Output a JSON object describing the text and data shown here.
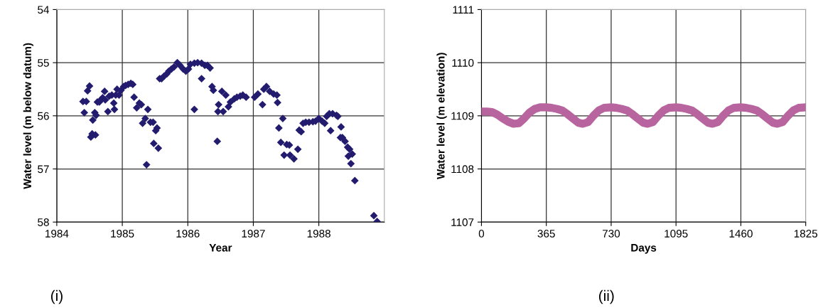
{
  "chart_data": [
    {
      "type": "scatter",
      "xlabel": "Year",
      "ylabel": "Water level (m below datum)",
      "annotations": [
        "(i)"
      ],
      "xlim": [
        1984,
        1989
      ],
      "xticks": [
        1984,
        1985,
        1986,
        1987,
        1988
      ],
      "ylim": [
        58,
        54
      ],
      "yticks": [
        54,
        55,
        56,
        57,
        58
      ],
      "grid": true,
      "marker": "diamond",
      "series": [
        {
          "color": "#231c6e",
          "x": [
            1984.4,
            1984.42,
            1984.45,
            1984.47,
            1984.5,
            1984.52,
            1984.54,
            1984.59,
            1984.55,
            1984.58,
            1984.6,
            1984.62,
            1984.65,
            1984.67,
            1984.7,
            1984.73,
            1984.74,
            1984.78,
            1984.8,
            1984.84,
            1984.87,
            1984.88,
            1984.9,
            1984.92,
            1984.95,
            1984.98,
            1985.02,
            1985.05,
            1985.09,
            1985.13,
            1985.16,
            1985.18,
            1985.22,
            1985.26,
            1985.29,
            1985.31,
            1985.35,
            1985.37,
            1985.39,
            1985.43,
            1985.47,
            1985.48,
            1985.51,
            1985.53,
            1985.55,
            1985.57,
            1985.6,
            1985.64,
            1985.68,
            1985.71,
            1985.75,
            1985.79,
            1985.84,
            1985.88,
            1985.93,
            1985.97,
            1986.01,
            1986.04,
            1986.1,
            1986.1,
            1986.15,
            1986.21,
            1986.21,
            1986.26,
            1986.3,
            1986.34,
            1986.37,
            1986.39,
            1986.45,
            1986.47,
            1986.46,
            1986.52,
            1986.54,
            1986.58,
            1986.62,
            1986.65,
            1986.71,
            1986.75,
            1986.8,
            1986.84,
            1986.89,
            1987.02,
            1987.07,
            1987.14,
            1987.16,
            1987.2,
            1987.25,
            1987.31,
            1987.36,
            1987.37,
            1987.39,
            1987.45,
            1987.42,
            1987.47,
            1987.51,
            1987.55,
            1987.56,
            1987.62,
            1987.68,
            1987.7,
            1987.73,
            1987.76,
            1987.8,
            1987.85,
            1987.91,
            1987.95,
            1988.0,
            1988.05,
            1988.09,
            1988.12,
            1988.16,
            1988.18,
            1988.21,
            1988.27,
            1988.29,
            1988.34,
            1988.33,
            1988.36,
            1988.4,
            1988.44,
            1988.47,
            1988.45,
            1988.51,
            1988.49,
            1988.55,
            1988.84,
            1988.89
          ],
          "values": [
            55.73,
            55.94,
            55.73,
            55.53,
            55.44,
            56.4,
            56.34,
            56.36,
            56.08,
            55.94,
            55.99,
            55.74,
            55.74,
            55.7,
            55.66,
            55.54,
            55.7,
            55.92,
            55.63,
            55.61,
            55.76,
            55.88,
            55.61,
            55.5,
            55.61,
            55.52,
            55.45,
            55.43,
            55.41,
            55.39,
            55.41,
            55.65,
            55.85,
            55.76,
            55.79,
            56.14,
            56.05,
            56.92,
            55.88,
            56.12,
            56.12,
            56.52,
            56.28,
            56.23,
            56.61,
            55.3,
            55.3,
            55.25,
            55.21,
            55.16,
            55.12,
            55.08,
            55.0,
            55.05,
            55.12,
            55.16,
            55.12,
            55.03,
            55.01,
            55.88,
            55.0,
            55.3,
            55.01,
            55.05,
            55.05,
            55.1,
            55.45,
            55.52,
            56.48,
            55.79,
            55.92,
            55.54,
            55.92,
            55.61,
            55.83,
            55.74,
            55.68,
            55.65,
            55.63,
            55.61,
            55.65,
            55.65,
            55.59,
            55.79,
            55.5,
            55.45,
            55.54,
            55.59,
            55.61,
            55.75,
            56.23,
            56.05,
            56.5,
            56.74,
            56.54,
            56.55,
            56.74,
            56.81,
            56.63,
            56.27,
            56.3,
            56.14,
            56.12,
            56.12,
            56.11,
            56.1,
            56.05,
            56.1,
            56.14,
            56.01,
            55.96,
            56.28,
            55.96,
            55.99,
            56.01,
            56.21,
            56.41,
            56.41,
            56.48,
            56.59,
            56.63,
            56.76,
            56.72,
            56.9,
            57.22,
            57.88,
            57.99
          ]
        }
      ]
    },
    {
      "type": "line",
      "xlabel": "Days",
      "ylabel": "Water level (m elevation)",
      "annotations": [
        "(ii)"
      ],
      "xlim": [
        0,
        1825
      ],
      "xticks": [
        0,
        365,
        730,
        1095,
        1460,
        1825
      ],
      "ylim": [
        1107,
        1111
      ],
      "yticks": [
        1107,
        1108,
        1109,
        1110,
        1111
      ],
      "grid": true,
      "line_style": "solid",
      "series": [
        {
          "color": "#b8649e",
          "x": [
            0,
            30,
            60,
            90,
            120,
            150,
            180,
            210,
            240,
            270,
            300,
            330,
            365,
            395,
            425,
            455,
            485,
            515,
            545,
            570,
            600,
            630,
            660,
            690,
            730,
            760,
            790,
            820,
            850,
            880,
            910,
            935,
            965,
            995,
            1025,
            1055,
            1095,
            1125,
            1155,
            1185,
            1215,
            1245,
            1275,
            1300,
            1330,
            1360,
            1390,
            1420,
            1460,
            1490,
            1520,
            1550,
            1580,
            1610,
            1640,
            1665,
            1695,
            1725,
            1755,
            1785,
            1825
          ],
          "values": [
            1109.08,
            1109.08,
            1109.07,
            1109.02,
            1108.95,
            1108.89,
            1108.85,
            1108.86,
            1108.95,
            1109.06,
            1109.13,
            1109.16,
            1109.16,
            1109.15,
            1109.13,
            1109.1,
            1109.03,
            1108.95,
            1108.87,
            1108.85,
            1108.88,
            1109.0,
            1109.1,
            1109.15,
            1109.16,
            1109.15,
            1109.13,
            1109.1,
            1109.03,
            1108.95,
            1108.87,
            1108.85,
            1108.88,
            1109.0,
            1109.1,
            1109.15,
            1109.16,
            1109.15,
            1109.13,
            1109.1,
            1109.03,
            1108.95,
            1108.87,
            1108.85,
            1108.88,
            1109.0,
            1109.1,
            1109.15,
            1109.16,
            1109.15,
            1109.13,
            1109.1,
            1109.03,
            1108.95,
            1108.87,
            1108.85,
            1108.88,
            1109.0,
            1109.1,
            1109.15,
            1109.16
          ]
        }
      ]
    }
  ]
}
